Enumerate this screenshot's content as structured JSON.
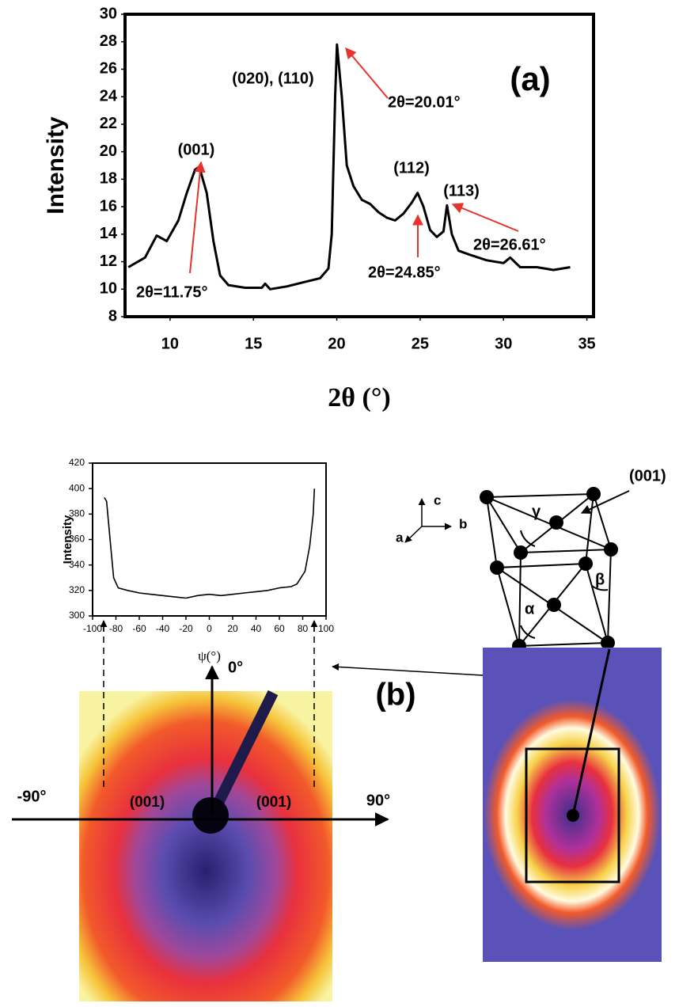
{
  "chart_data": [
    {
      "type": "line",
      "y_label": "Intensity",
      "x_label": "2θ (°)",
      "panel_label": "(a)",
      "color": "#000000",
      "x": [
        7.5,
        8.5,
        9.2,
        9.8,
        10.5,
        11,
        11.5,
        11.75,
        12.2,
        12.6,
        13,
        13.5,
        14.5,
        15.5,
        15.7,
        16,
        17,
        18,
        19,
        19.5,
        19.7,
        19.9,
        20.01,
        20.3,
        20.6,
        21,
        21.5,
        22,
        22.5,
        23,
        23.5,
        24,
        24.5,
        24.85,
        25.2,
        25.6,
        26,
        26.4,
        26.61,
        26.9,
        27.3,
        28,
        29,
        30,
        30.4,
        31,
        32,
        33,
        34
      ],
      "values": [
        11.6,
        12.3,
        13.9,
        13.5,
        15.0,
        17.0,
        18.7,
        18.9,
        17.0,
        13.5,
        11.0,
        10.3,
        10.1,
        10.1,
        10.4,
        10.0,
        10.2,
        10.5,
        10.8,
        11.5,
        14,
        24,
        27.8,
        24,
        19,
        17.5,
        16.5,
        16.2,
        15.6,
        15.2,
        15.0,
        15.5,
        16.3,
        17.0,
        16.0,
        14.3,
        13.8,
        14.2,
        16.1,
        14.0,
        12.8,
        12.5,
        12.1,
        11.9,
        12.3,
        11.6,
        11.6,
        11.4,
        11.6
      ],
      "xlim": [
        7.3,
        35.4
      ],
      "xticks": [
        10,
        15,
        20,
        25,
        30,
        35
      ],
      "ylim": [
        8,
        30
      ],
      "yticks": [
        8,
        10,
        12,
        14,
        16,
        18,
        20,
        22,
        24,
        26,
        28,
        30
      ],
      "annotations": [
        "(001)",
        "(020), (110)",
        "2θ=20.01°",
        "(112)",
        "(113)",
        "2θ=26.61°",
        "2θ=24.85°",
        "2θ=11.75°"
      ]
    },
    {
      "type": "line",
      "y_label": "Intensity",
      "x_label": "ψ(°)",
      "color": "#000000",
      "x": [
        -90,
        -88,
        -85,
        -82,
        -78,
        -70,
        -60,
        -50,
        -40,
        -30,
        -20,
        -10,
        0,
        10,
        20,
        30,
        40,
        50,
        60,
        70,
        75,
        82,
        86,
        89,
        90
      ],
      "values": [
        393,
        390,
        360,
        330,
        322,
        320,
        318,
        317,
        316,
        315,
        314,
        316,
        317,
        316,
        317,
        318,
        319,
        320,
        322,
        323,
        325,
        335,
        355,
        380,
        400
      ],
      "xlim": [
        -100,
        100
      ],
      "xticks": [
        -100,
        -80,
        -60,
        -40,
        -20,
        0,
        20,
        40,
        60,
        80,
        100
      ],
      "ylim": [
        300,
        420
      ],
      "yticks": [
        300,
        320,
        340,
        360,
        380,
        400,
        420
      ]
    }
  ],
  "panel_b_label": "(b)",
  "axes_labels": [
    "c",
    "b",
    "a"
  ],
  "lattice_labels": [
    "γ",
    "β",
    "α",
    "(001)"
  ],
  "pattern_labels": [
    "0°",
    "-90°",
    "90°",
    "(001)",
    "(001)"
  ]
}
